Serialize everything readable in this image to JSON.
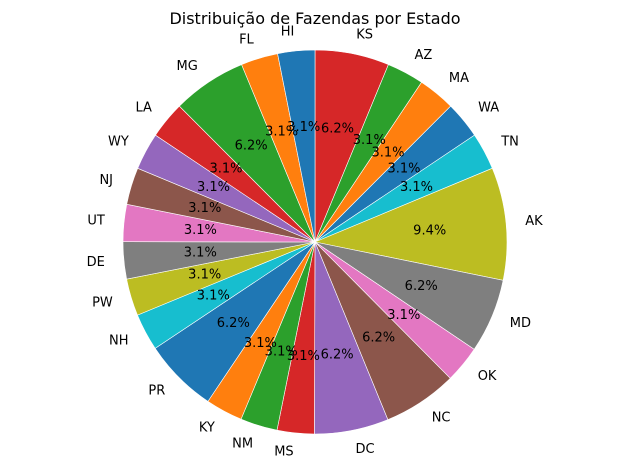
{
  "chart_data": {
    "type": "pie",
    "title": "Distribuição de Fazendas por Estado",
    "start": "top",
    "direction": "clockwise",
    "slices": [
      {
        "label": "KS",
        "value": 6.2,
        "pct": "6.2%",
        "color": "#d62728"
      },
      {
        "label": "AZ",
        "value": 3.1,
        "pct": "3.1%",
        "color": "#2ca02c"
      },
      {
        "label": "MA",
        "value": 3.1,
        "pct": "3.1%",
        "color": "#ff7f0e"
      },
      {
        "label": "WA",
        "value": 3.1,
        "pct": "3.1%",
        "color": "#1f77b4"
      },
      {
        "label": "TN",
        "value": 3.1,
        "pct": "3.1%",
        "color": "#17becf"
      },
      {
        "label": "AK",
        "value": 9.4,
        "pct": "9.4%",
        "color": "#bcbd22"
      },
      {
        "label": "MD",
        "value": 6.2,
        "pct": "6.2%",
        "color": "#7f7f7f"
      },
      {
        "label": "OK",
        "value": 3.1,
        "pct": "3.1%",
        "color": "#e377c2"
      },
      {
        "label": "NC",
        "value": 6.2,
        "pct": "6.2%",
        "color": "#8c564b"
      },
      {
        "label": "DC",
        "value": 6.2,
        "pct": "6.2%",
        "color": "#9467bd"
      },
      {
        "label": "MS",
        "value": 3.1,
        "pct": "3.1%",
        "color": "#d62728"
      },
      {
        "label": "NM",
        "value": 3.1,
        "pct": "3.1%",
        "color": "#2ca02c"
      },
      {
        "label": "KY",
        "value": 3.1,
        "pct": "3.1%",
        "color": "#ff7f0e"
      },
      {
        "label": "PR",
        "value": 6.2,
        "pct": "6.2%",
        "color": "#1f77b4"
      },
      {
        "label": "NH",
        "value": 3.1,
        "pct": "3.1%",
        "color": "#17becf"
      },
      {
        "label": "PW",
        "value": 3.1,
        "pct": "3.1%",
        "color": "#bcbd22"
      },
      {
        "label": "DE",
        "value": 3.1,
        "pct": "3.1%",
        "color": "#7f7f7f"
      },
      {
        "label": "UT",
        "value": 3.1,
        "pct": "3.1%",
        "color": "#e377c2"
      },
      {
        "label": "NJ",
        "value": 3.1,
        "pct": "3.1%",
        "color": "#8c564b"
      },
      {
        "label": "WY",
        "value": 3.1,
        "pct": "3.1%",
        "color": "#9467bd"
      },
      {
        "label": "LA",
        "value": 3.1,
        "pct": "3.1%",
        "color": "#d62728"
      },
      {
        "label": "MG",
        "value": 6.2,
        "pct": "6.2%",
        "color": "#2ca02c"
      },
      {
        "label": "FL",
        "value": 3.1,
        "pct": "3.1%",
        "color": "#ff7f0e"
      },
      {
        "label": "HI",
        "value": 3.1,
        "pct": "3.1%",
        "color": "#1f77b4"
      }
    ]
  }
}
